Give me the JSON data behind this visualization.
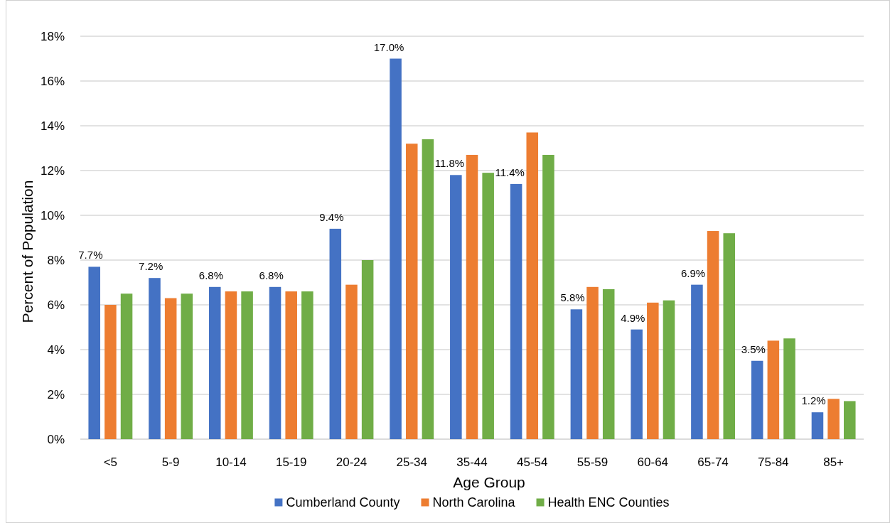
{
  "chart_data": {
    "type": "bar",
    "xlabel": "Age Group",
    "ylabel": "Percent of Population",
    "categories": [
      "<5",
      "5-9",
      "10-14",
      "15-19",
      "20-24",
      "25-34",
      "35-44",
      "45-54",
      "55-59",
      "60-64",
      "65-74",
      "75-84",
      "85+"
    ],
    "series": [
      {
        "name": "Cumberland County",
        "color": "#4472c4",
        "values": [
          7.7,
          7.2,
          6.8,
          6.8,
          9.4,
          17.0,
          11.8,
          11.4,
          5.8,
          4.9,
          6.9,
          3.5,
          1.2
        ],
        "value_labels": [
          "7.7%",
          "7.2%",
          "6.8%",
          "6.8%",
          "9.4%",
          "17.0%",
          "11.8%",
          "11.4%",
          "5.8%",
          "4.9%",
          "6.9%",
          "3.5%",
          "1.2%"
        ]
      },
      {
        "name": "North Carolina",
        "color": "#ed7d31",
        "values": [
          6.0,
          6.3,
          6.6,
          6.6,
          6.9,
          13.2,
          12.7,
          13.7,
          6.8,
          6.1,
          9.3,
          4.4,
          1.8
        ]
      },
      {
        "name": "Health ENC Counties",
        "color": "#70ad47",
        "values": [
          6.5,
          6.5,
          6.6,
          6.6,
          8.0,
          13.4,
          11.9,
          12.7,
          6.7,
          6.2,
          9.2,
          4.5,
          1.7
        ]
      }
    ],
    "ylim": [
      0,
      18
    ],
    "yticks": [
      {
        "value": 0,
        "label": "0%"
      },
      {
        "value": 2,
        "label": "2%"
      },
      {
        "value": 4,
        "label": "4%"
      },
      {
        "value": 6,
        "label": "6%"
      },
      {
        "value": 8,
        "label": "8%"
      },
      {
        "value": 10,
        "label": "10%"
      },
      {
        "value": 12,
        "label": "12%"
      },
      {
        "value": 14,
        "label": "14%"
      },
      {
        "value": 16,
        "label": "16%"
      },
      {
        "value": 18,
        "label": "18%"
      }
    ],
    "grid": "y",
    "legend": "bottom"
  }
}
